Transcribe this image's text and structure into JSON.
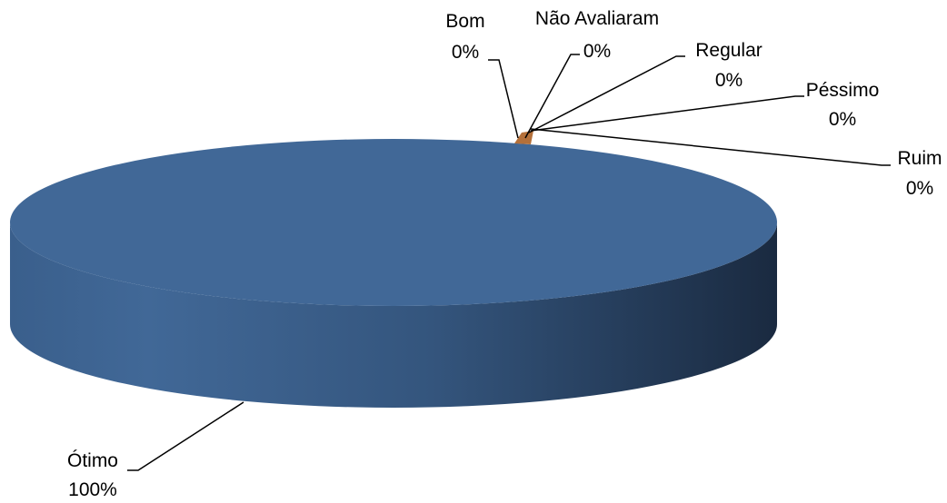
{
  "chart_data": {
    "type": "pie",
    "style": "3d",
    "title": "",
    "legend": "none",
    "slices": [
      {
        "label": "Ótimo",
        "value": 100,
        "display": "100%",
        "color": "#416897",
        "name_key": "otimo"
      },
      {
        "label": "Bom",
        "value": 0,
        "display": "0%",
        "color": "#b4703a",
        "name_key": "bom"
      },
      {
        "label": "Não Avaliaram",
        "value": 0,
        "display": "0%",
        "color": "#8aa0c0",
        "name_key": "nao-avaliaram"
      },
      {
        "label": "Regular",
        "value": 0,
        "display": "0%",
        "color": "#9b4f4a",
        "name_key": "regular"
      },
      {
        "label": "Péssimo",
        "value": 0,
        "display": "0%",
        "color": "#7a9a4a",
        "name_key": "pessimo"
      },
      {
        "label": "Ruim",
        "value": 0,
        "display": "0%",
        "color": "#5f4a87",
        "name_key": "ruim"
      }
    ]
  }
}
